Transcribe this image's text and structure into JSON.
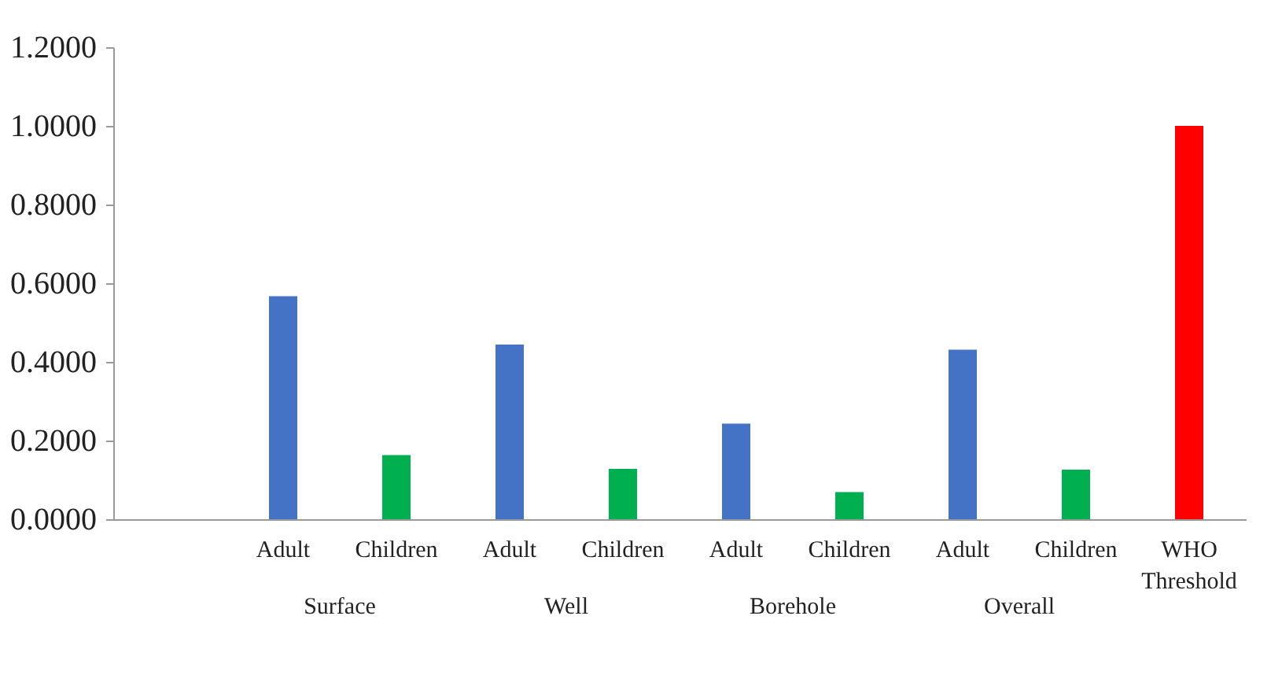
{
  "chart_data": {
    "type": "bar",
    "categories": [
      null,
      "Adult",
      "Children",
      "Adult",
      "Children",
      "Adult",
      "Children",
      "Adult",
      "Children",
      "WHO Threshold"
    ],
    "values": [
      null,
      0.567,
      0.163,
      0.444,
      0.128,
      0.243,
      0.069,
      0.431,
      0.126,
      1.0
    ],
    "colors": [
      null,
      "#4472c4",
      "#00b050",
      "#4472c4",
      "#00b050",
      "#4472c4",
      "#00b050",
      "#4472c4",
      "#00b050",
      "#ff0000"
    ],
    "annotations": [
      "Surface",
      "Well",
      "Borehole",
      "Overall"
    ],
    "ylim": [
      0,
      1.2
    ],
    "yticks": [
      {
        "value": 0,
        "label": "0.0000"
      },
      {
        "value": 0.2,
        "label": "0.2000"
      },
      {
        "value": 0.4,
        "label": "0.4000"
      },
      {
        "value": 0.6,
        "label": "0.6000"
      },
      {
        "value": 0.8,
        "label": "0.8000"
      },
      {
        "value": 1.0,
        "label": "1.0000"
      },
      {
        "value": 1.2,
        "label": "1.2000"
      }
    ],
    "grid": false
  }
}
